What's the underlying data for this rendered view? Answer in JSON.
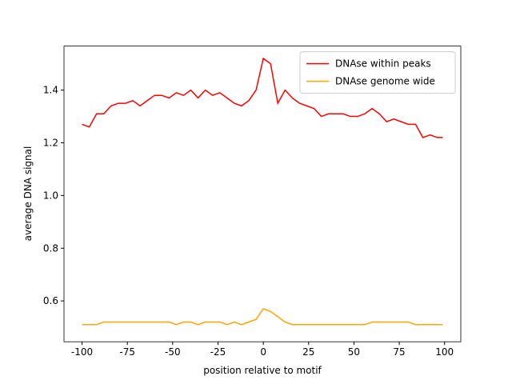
{
  "chart_data": {
    "type": "line",
    "xlabel": "position relative to motif",
    "ylabel": "average DNA signal",
    "x": [
      -100,
      -96,
      -92,
      -88,
      -84,
      -80,
      -76,
      -72,
      -68,
      -64,
      -60,
      -56,
      -52,
      -48,
      -44,
      -40,
      -36,
      -32,
      -28,
      -24,
      -20,
      -16,
      -12,
      -8,
      -4,
      0,
      4,
      8,
      12,
      16,
      20,
      24,
      28,
      32,
      36,
      40,
      44,
      48,
      52,
      56,
      60,
      64,
      68,
      72,
      76,
      80,
      84,
      88,
      92,
      96,
      99
    ],
    "series": [
      {
        "name": "DNAse within peaks",
        "color": "#ff0000",
        "values": [
          1.27,
          1.26,
          1.31,
          1.31,
          1.34,
          1.35,
          1.35,
          1.36,
          1.34,
          1.36,
          1.38,
          1.38,
          1.37,
          1.39,
          1.38,
          1.4,
          1.37,
          1.4,
          1.38,
          1.39,
          1.37,
          1.35,
          1.34,
          1.36,
          1.4,
          1.52,
          1.5,
          1.35,
          1.4,
          1.37,
          1.35,
          1.34,
          1.33,
          1.3,
          1.31,
          1.31,
          1.31,
          1.3,
          1.3,
          1.31,
          1.33,
          1.31,
          1.28,
          1.29,
          1.28,
          1.27,
          1.27,
          1.22,
          1.23,
          1.22,
          1.22
        ]
      },
      {
        "name": "DNAse genome wide",
        "color": "#ffa500",
        "values": [
          0.51,
          0.51,
          0.51,
          0.52,
          0.52,
          0.52,
          0.52,
          0.52,
          0.52,
          0.52,
          0.52,
          0.52,
          0.52,
          0.51,
          0.52,
          0.52,
          0.51,
          0.52,
          0.52,
          0.52,
          0.51,
          0.52,
          0.51,
          0.52,
          0.53,
          0.57,
          0.56,
          0.54,
          0.52,
          0.51,
          0.51,
          0.51,
          0.51,
          0.51,
          0.51,
          0.51,
          0.51,
          0.51,
          0.51,
          0.51,
          0.52,
          0.52,
          0.52,
          0.52,
          0.52,
          0.52,
          0.51,
          0.51,
          0.51,
          0.51,
          0.51
        ]
      }
    ],
    "xlim": [
      -109.95,
      108.95
    ],
    "ylim": [
      0.445,
      1.567
    ],
    "xticks": [
      -100,
      -75,
      -50,
      -25,
      0,
      25,
      50,
      75,
      100
    ],
    "yticks": [
      {
        "value": 0.6,
        "label": "0.6"
      },
      {
        "value": 0.8,
        "label": "0.8"
      },
      {
        "value": 1.0,
        "label": "1.0"
      },
      {
        "value": 1.2,
        "label": "1.2"
      },
      {
        "value": 1.4,
        "label": "1.4"
      }
    ],
    "legend": "upper right"
  }
}
